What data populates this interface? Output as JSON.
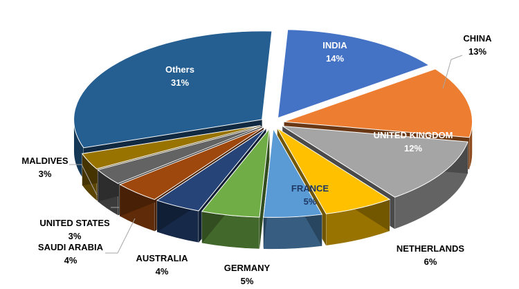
{
  "chart_data": {
    "type": "pie",
    "title": "",
    "legend": "none",
    "slices": [
      {
        "label": "INDIA",
        "value_label": "14%",
        "value": 14,
        "color": "#4472C4"
      },
      {
        "label": "CHINA",
        "value_label": "13%",
        "value": 13,
        "color": "#ED7D31"
      },
      {
        "label": "UNITED KINGDOM",
        "value_label": "12%",
        "value": 12,
        "color": "#A5A5A5"
      },
      {
        "label": "NETHERLANDS",
        "value_label": "6%",
        "value": 6,
        "color": "#FFC000"
      },
      {
        "label": "FRANCE",
        "value_label": "5%",
        "value": 5,
        "color": "#5B9BD5"
      },
      {
        "label": "GERMANY",
        "value_label": "5%",
        "value": 5,
        "color": "#70AD47"
      },
      {
        "label": "AUSTRALIA",
        "value_label": "4%",
        "value": 4,
        "color": "#264478"
      },
      {
        "label": "SAUDI ARABIA",
        "value_label": "4%",
        "value": 4,
        "color": "#9E480E"
      },
      {
        "label": "UNITED STATES",
        "value_label": "3%",
        "value": 3,
        "color": "#636363"
      },
      {
        "label": "MALDIVES",
        "value_label": "3%",
        "value": 3,
        "color": "#997300"
      },
      {
        "label": "Others",
        "value_label": "31%",
        "value": 31,
        "color": "#255E91"
      }
    ]
  }
}
